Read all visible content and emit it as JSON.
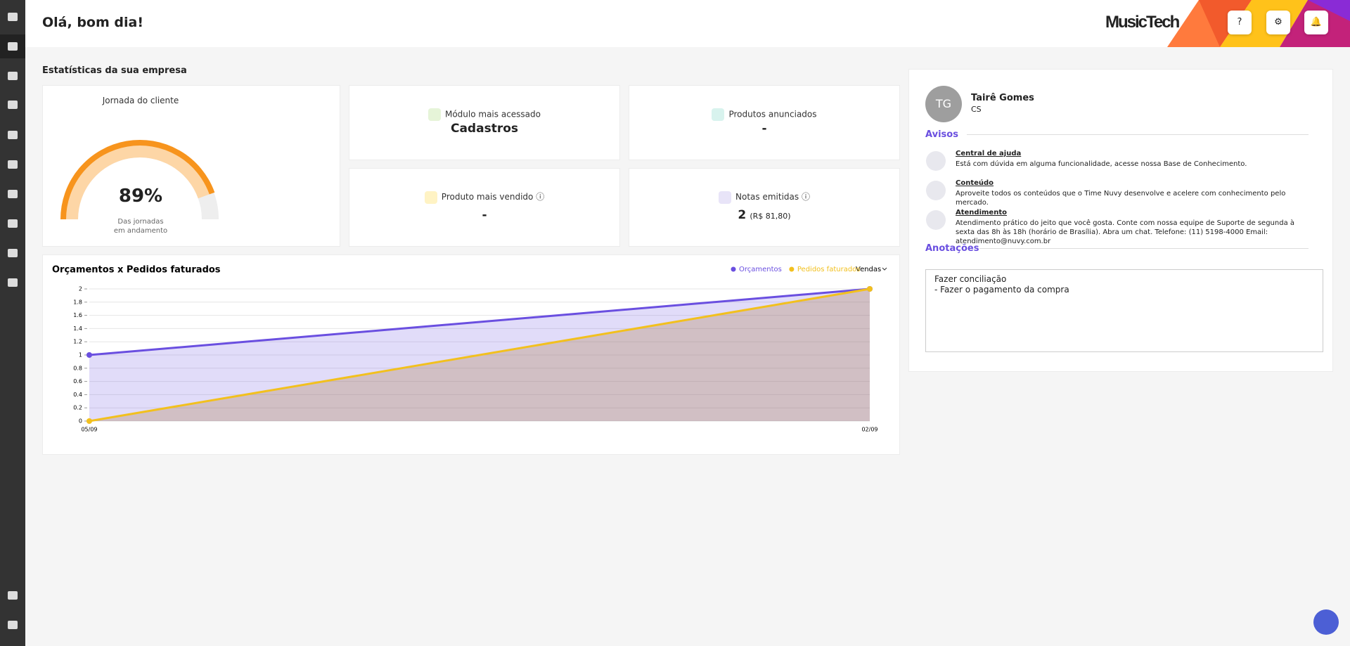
{
  "header": {
    "greeting": "Olá, bom dia!",
    "brand": "MusicTech",
    "help": "?"
  },
  "stats": {
    "title": "Estatísticas da sua empresa",
    "journey": {
      "title": "Jornada do cliente",
      "value": 89,
      "value_label": "89%",
      "lim": [
        0,
        100
      ],
      "caption": [
        "Das jornadas",
        "em andamento"
      ]
    },
    "cards": [
      {
        "label": "Módulo mais acessado",
        "value": "Cadastros"
      },
      {
        "label": "Produtos anunciados",
        "value": "-"
      },
      {
        "label": "Produto mais vendido",
        "value": "-"
      },
      {
        "label": "Notas emitidas",
        "value": "2",
        "detail": "(R$ 81,80)"
      }
    ]
  },
  "chart_data": {
    "type": "area",
    "title": "Orçamentos x Pedidos faturados",
    "x": [
      "05/09",
      "02/09"
    ],
    "series": [
      {
        "name": "Orçamentos",
        "color": "#6a4fe0",
        "values": [
          1,
          2
        ]
      },
      {
        "name": "Pedidos faturados",
        "color": "#f2c01e",
        "values": [
          0,
          2
        ]
      }
    ],
    "ylim": [
      0,
      2
    ],
    "yticks": [
      0,
      0.2,
      0.4,
      0.6,
      0.8,
      1,
      1.2,
      1.4,
      1.6,
      1.8,
      2
    ],
    "grid": true,
    "filter": "Vendas"
  },
  "profile": {
    "initials": "TG",
    "name": "Tairê Gomes",
    "role": "CS"
  },
  "notices": {
    "title": "Avisos",
    "items": [
      {
        "title": "Central de ajuda",
        "text": "Está com dúvida em alguma funcionalidade, acesse nossa Base de Conhecimento."
      },
      {
        "title": "Conteúdo",
        "text": "Aproveite todos os conteúdos que o Time Nuvy desenvolve e acelere com conhecimento pelo mercado."
      },
      {
        "title": "Atendimento",
        "text": "Atendimento prático do jeito que você gosta. Conte com nossa equipe de Suporte de segunda à sexta das 8h às 18h (horário de Brasília). Abra um chat. Telefone: (11) 5198-4000 Email: atendimento@nuvy.com.br"
      }
    ]
  },
  "notes": {
    "title": "Anotações",
    "lines": [
      "Fazer conciliação",
      "- Fazer o pagamento da compra"
    ]
  }
}
